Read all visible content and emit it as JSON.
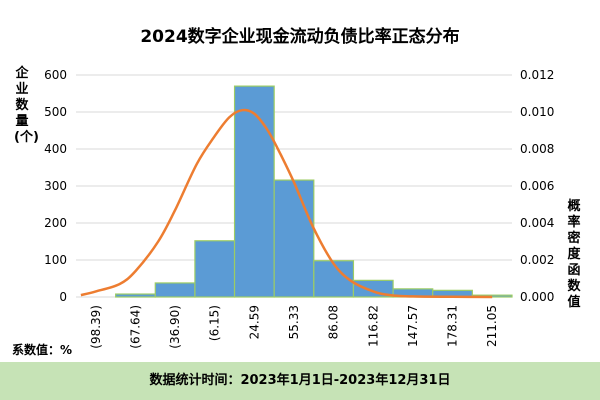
{
  "chart_data": {
    "type": "bar",
    "title": "2024数字企业现金流动负债比率正态分布",
    "ylabel": "企业数量(个)",
    "y2label": "概率密度函数值",
    "categories": [
      "(98.39)",
      "(67.64)",
      "(36.90)",
      "(6.15)",
      "24.59",
      "55.33",
      "86.08",
      "116.82",
      "147.57",
      "178.31",
      "211.05"
    ],
    "values": [
      0,
      8,
      38,
      152,
      570,
      316,
      98,
      45,
      22,
      18,
      5
    ],
    "ylim": [
      0,
      600
    ],
    "yticks": [
      0,
      100,
      200,
      300,
      400,
      500,
      600
    ],
    "y2lim": [
      0,
      0.012
    ],
    "y2ticks": [
      "0.000",
      "0.002",
      "0.004",
      "0.006",
      "0.008",
      "0.010",
      "0.012"
    ],
    "density_curve": {
      "x": [
        -110,
        -98.39,
        -80,
        -67.64,
        -50,
        -36.9,
        -20,
        -6.15,
        5,
        15,
        24.59,
        35,
        45,
        55.33,
        70,
        86.08,
        100,
        116.82,
        130,
        147.57,
        178.31,
        211.05
      ],
      "y": [
        0.0001,
        0.0003,
        0.0007,
        0.0014,
        0.003,
        0.0047,
        0.0072,
        0.0087,
        0.0097,
        0.0101,
        0.0099,
        0.009,
        0.0077,
        0.0062,
        0.0038,
        0.0018,
        0.00085,
        0.0003,
        0.0001,
        3e-05,
        1e-05,
        0.0
      ],
      "color": "#ed7d31"
    },
    "bar_color": "#5b9bd5",
    "bar_edge_color": "#9ccc65",
    "grid": true
  },
  "unit_note": "系数值：%",
  "footer": "数据统计时间：2023年1月1日-2023年12月31日"
}
